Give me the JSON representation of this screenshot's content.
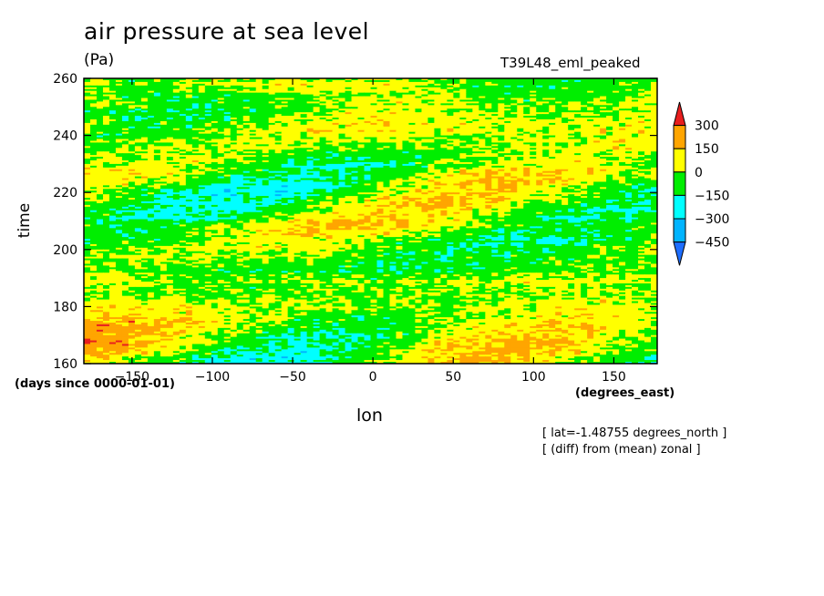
{
  "figure": {
    "title": "air pressure at sea level",
    "units": "(Pa)",
    "run_name": "T39L48_eml_peaked",
    "time_units": "(days since 0000-01-01)",
    "x_units": "(degrees_east)",
    "annotations": [
      "[ lat=-1.48755 degrees_north ]",
      "[ (diff) from (mean) zonal ]"
    ]
  },
  "chart_data": {
    "type": "heatmap",
    "title": "air pressure at sea level",
    "xlabel": "lon",
    "ylabel": "time",
    "xlim": [
      -180,
      177
    ],
    "ylim": [
      160,
      260
    ],
    "xticks": [
      -150,
      -100,
      -50,
      0,
      50,
      100,
      150
    ],
    "yticks": [
      160,
      180,
      200,
      220,
      240,
      260
    ],
    "grid": false,
    "colorbar": {
      "placement": "right",
      "levels": [
        -450,
        -300,
        -150,
        0,
        150,
        300
      ],
      "labels": [
        "300",
        "150",
        "0",
        "−150",
        "−300",
        "−450"
      ],
      "colors": [
        "#1e6eff",
        "#00b4ff",
        "#00ffff",
        "#00ee00",
        "#ffff00",
        "#ffa500",
        "#e81e1e"
      ]
    },
    "variable": "air pressure at sea level, deviation from zonal mean (Pa)"
  }
}
